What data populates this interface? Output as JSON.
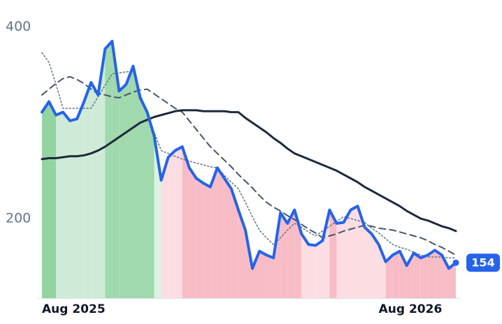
{
  "chart_data": {
    "type": "line",
    "categories": [
      "Aug 2025",
      null,
      null,
      null,
      null,
      null,
      null,
      null,
      null,
      null,
      null,
      null,
      null,
      null,
      null,
      null,
      null,
      null,
      null,
      null,
      null,
      null,
      null,
      null,
      null,
      null,
      null,
      null,
      null,
      null,
      null,
      null,
      null,
      null,
      null,
      null,
      null,
      null,
      null,
      null,
      null,
      null,
      null,
      null,
      null,
      null,
      null,
      null,
      "Aug 2026",
      null,
      null,
      null,
      null,
      null,
      null,
      null,
      null,
      null,
      null,
      null
    ],
    "ylim": [
      117,
      428
    ],
    "yticks": [
      200,
      400
    ],
    "series": [
      {
        "color": "#2563eb",
        "style": "solid",
        "values": [
          311,
          322,
          308,
          311,
          302,
          304,
          322,
          342,
          329,
          377,
          385,
          333,
          340,
          359,
          326,
          311,
          286,
          240,
          264,
          271,
          275,
          253,
          242,
          237,
          233,
          253,
          242,
          231,
          209,
          188,
          148,
          166,
          162,
          159,
          206,
          195,
          209,
          184,
          173,
          172,
          177,
          209,
          195,
          196,
          209,
          213,
          191,
          184,
          173,
          155,
          162,
          166,
          151,
          164,
          159,
          162,
          167,
          162,
          148,
          154
        ]
      },
      {
        "color": "#1e293b",
        "style": "solid",
        "values": [
          262,
          263,
          263,
          264,
          265,
          265,
          266,
          268,
          271,
          275,
          280,
          285,
          290,
          295,
          300,
          303,
          306,
          308,
          310,
          312,
          313,
          313,
          313,
          312,
          312,
          312,
          312,
          311,
          311,
          305,
          300,
          295,
          290,
          284,
          279,
          273,
          268,
          265,
          262,
          259,
          256,
          253,
          250,
          246,
          242,
          238,
          233,
          229,
          225,
          221,
          217,
          213,
          208,
          204,
          200,
          198,
          195,
          192,
          190,
          187
        ]
      },
      {
        "color": "#475569",
        "style": "dashed",
        "values": [
          329,
          335,
          341,
          346,
          348,
          345,
          341,
          335,
          330,
          329,
          327,
          326,
          329,
          332,
          334,
          335,
          330,
          325,
          320,
          315,
          311,
          302,
          293,
          284,
          275,
          268,
          261,
          254,
          246,
          239,
          232,
          224,
          217,
          212,
          208,
          203,
          199,
          194,
          189,
          185,
          180,
          182,
          184,
          187,
          189,
          191,
          193,
          192,
          190,
          189,
          188,
          186,
          184,
          182,
          180,
          177,
          173,
          170,
          166,
          162
        ]
      },
      {
        "color": "#64748b",
        "style": "dotted",
        "values": [
          373,
          363,
          340,
          315,
          315,
          315,
          315,
          315,
          327,
          339,
          351,
          352,
          353,
          354,
          330,
          310,
          290,
          271,
          268,
          265,
          262,
          260,
          258,
          256,
          254,
          253,
          245,
          238,
          231,
          217,
          202,
          188,
          180,
          173,
          180,
          188,
          195,
          191,
          186,
          182,
          187,
          192,
          197,
          202,
          200,
          198,
          196,
          190,
          185,
          179,
          173,
          170,
          168,
          165,
          162,
          160,
          160,
          160,
          159,
          159
        ]
      }
    ],
    "region_colors": [
      "#93d3a2",
      "#93d3a2",
      "#cdebd6",
      "#cdebd6",
      "#cdebd6",
      "#cdebd6",
      "#cdebd6",
      "#cdebd6",
      "#cdebd6",
      "#9fd9ad",
      "#9fd9ad",
      "#9fd9ad",
      "#9fd9ad",
      "#9fd9ad",
      "#9fd9ad",
      "#9fd9ad",
      "#daf2e0",
      "#fcdde2",
      "#fcdde2",
      "#fcdde2",
      "#f8bcc6",
      "#f8bcc6",
      "#f8bcc6",
      "#f8bcc6",
      "#f8bcc6",
      "#f8bcc6",
      "#f8bcc6",
      "#f8bcc6",
      "#f8bcc6",
      "#f8bcc6",
      "#f8bcc6",
      "#f8bcc6",
      "#f8bcc6",
      "#f8bcc6",
      "#f8bcc6",
      "#f8bcc6",
      "#f8bcc6",
      "#fcdde2",
      "#fcdde2",
      "#fcdde2",
      "#fcdde2",
      "#f8bcc6",
      "#fcdde2",
      "#fcdde2",
      "#fcdde2",
      "#fcdde2",
      "#fcdde2",
      "#fcdde2",
      "#fcdde2",
      "#f8bcc6",
      "#f8bcc6",
      "#f8bcc6",
      "#f8bcc6",
      "#f8bcc6",
      "#f8bcc6",
      "#f8bcc6",
      "#f8bcc6",
      "#f8bcc6",
      "#f8bcc6",
      "#f8bcc6"
    ],
    "grid": false
  }
}
